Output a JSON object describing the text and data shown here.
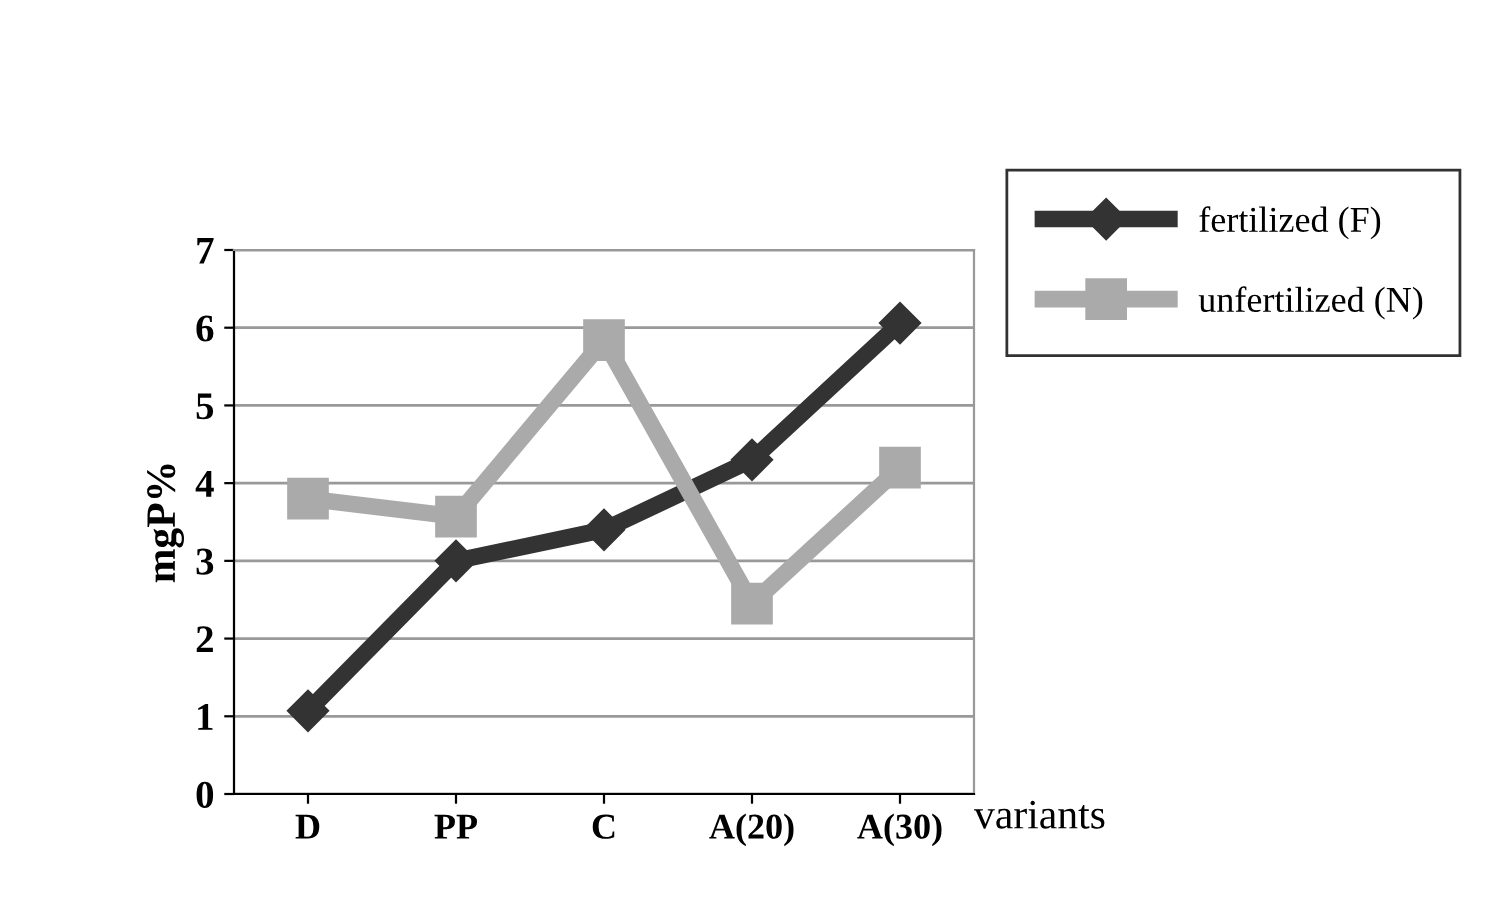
{
  "chart_data": {
    "type": "line",
    "xlabel": "variants",
    "ylabel": "mgP%",
    "categories": [
      "D",
      "PP",
      "C",
      "A(20)",
      "A(30)"
    ],
    "series": [
      {
        "name": "fertilized (F)",
        "color": "#333333",
        "values": [
          1.07,
          3.0,
          3.4,
          4.3,
          6.06
        ],
        "marker": "diamond"
      },
      {
        "name": "unfertilized (N)",
        "color": "#aaaaaa",
        "values": [
          3.8,
          3.57,
          5.84,
          2.45,
          4.2
        ],
        "marker": "square"
      }
    ],
    "ylim": [
      0,
      7
    ],
    "yticks": [
      0,
      1,
      2,
      3,
      4,
      5,
      6,
      7
    ],
    "grid": "y",
    "legend": "top right"
  }
}
